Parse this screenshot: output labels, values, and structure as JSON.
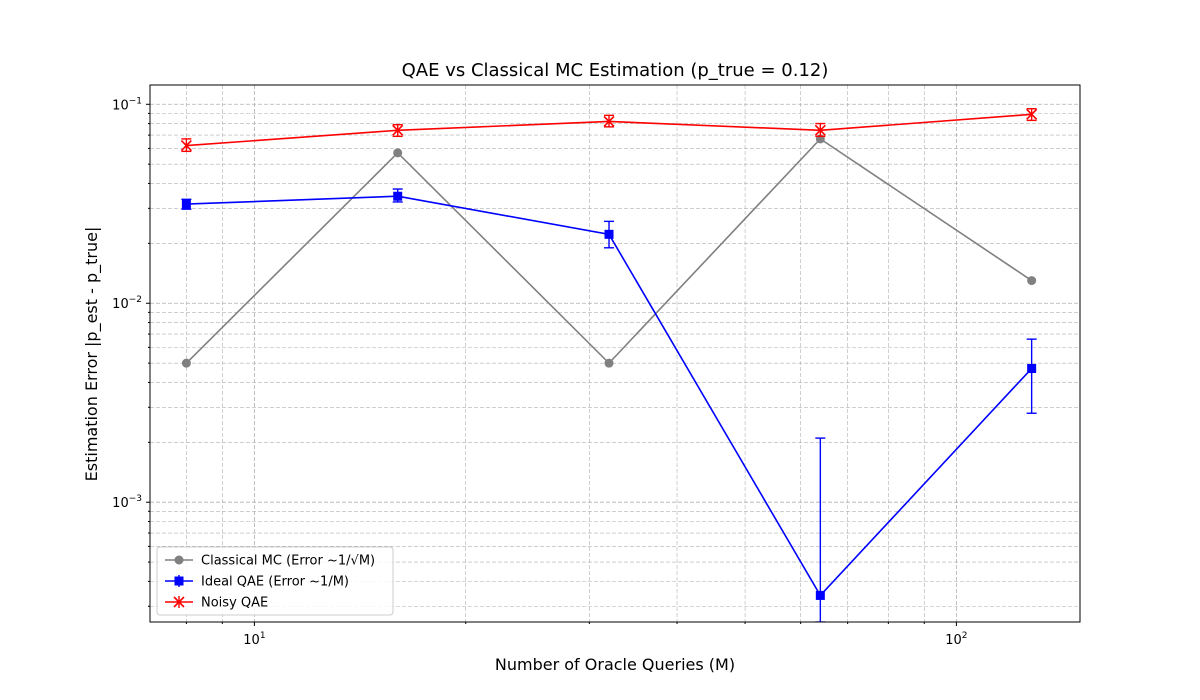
{
  "chart_data": {
    "type": "line",
    "title": "QAE vs Classical MC Estimation (p_true = 0.12)",
    "xlabel": "Number of Oracle Queries (M)",
    "ylabel": "Estimation Error |p_est - p_true|",
    "xscale": "log",
    "yscale": "log",
    "xlim": [
      7.1,
      150
    ],
    "ylim": [
      0.00025,
      0.125
    ],
    "x_tick_labels": [
      {
        "value": 10,
        "base": "10",
        "exp": "1"
      },
      {
        "value": 100,
        "base": "10",
        "exp": "2"
      }
    ],
    "y_tick_labels": [
      {
        "value": 0.001,
        "base": "10",
        "exp": "−3"
      },
      {
        "value": 0.01,
        "base": "10",
        "exp": "−2"
      },
      {
        "value": 0.1,
        "base": "10",
        "exp": "−1"
      }
    ],
    "grid": true,
    "legend_position": "lower-left",
    "x": [
      8,
      16,
      32,
      64,
      128
    ],
    "series": [
      {
        "name": "Classical MC (Error ~1/√M)",
        "color": "#808080",
        "marker": "circle",
        "values": [
          0.005,
          0.057,
          0.005,
          0.067,
          0.013
        ]
      },
      {
        "name": "Ideal QAE (Error ~1/M)",
        "color": "#0000ff",
        "marker": "square",
        "values": [
          0.0315,
          0.0345,
          0.0222,
          0.00034,
          0.0047
        ],
        "error_low": [
          0.0297,
          0.0323,
          0.019,
          0.00025,
          0.0028
        ],
        "error_high": [
          0.0333,
          0.0375,
          0.0258,
          0.0021,
          0.0066
        ]
      },
      {
        "name": "Noisy QAE",
        "color": "#ff0000",
        "marker": "x",
        "values": [
          0.062,
          0.074,
          0.082,
          0.074,
          0.089
        ],
        "error_low": [
          0.058,
          0.069,
          0.077,
          0.069,
          0.083
        ],
        "error_high": [
          0.067,
          0.079,
          0.088,
          0.08,
          0.095
        ]
      }
    ]
  }
}
